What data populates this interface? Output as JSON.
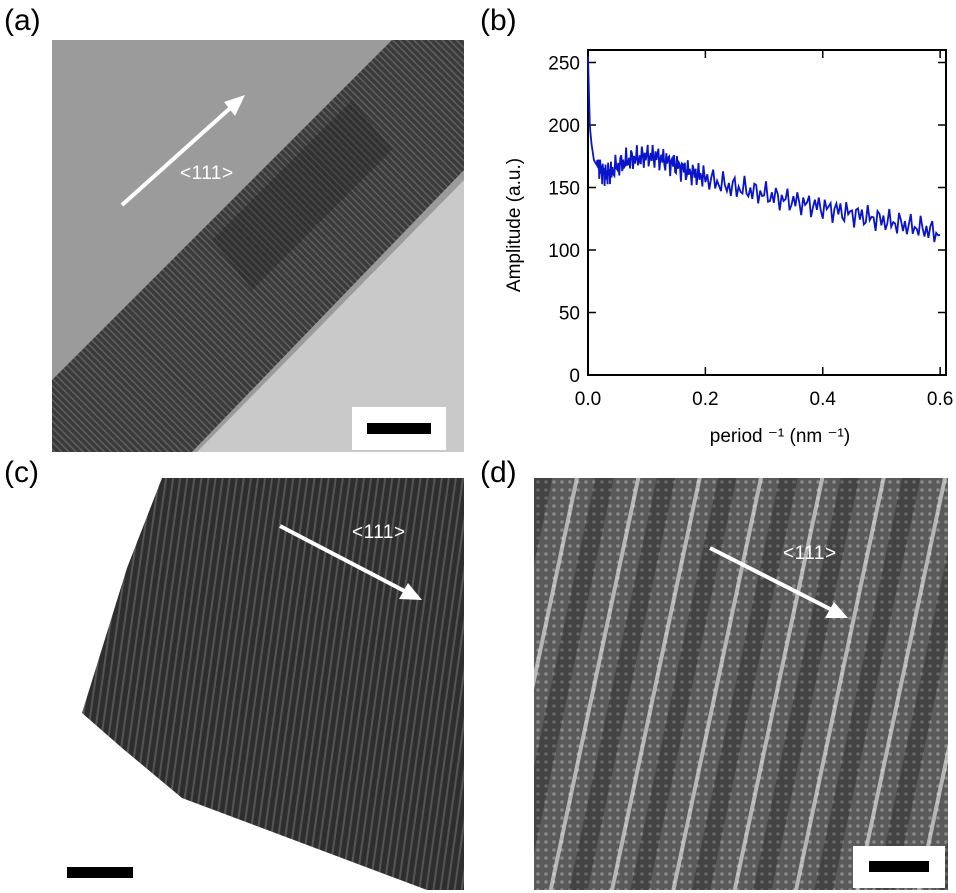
{
  "figure": {
    "panels": [
      {
        "label": "(a)",
        "direction_label": "<111>",
        "content": "TEM image of nanowire"
      },
      {
        "label": "(b)"
      },
      {
        "label": "(c)",
        "direction_label": "<111>",
        "content": "TEM image of nanowire tip"
      },
      {
        "label": "(d)",
        "direction_label": "<111>",
        "content": "high-resolution TEM lattice image"
      }
    ]
  },
  "chart_data": {
    "type": "line",
    "xlabel": "period ⁻¹ (nm ⁻¹)",
    "ylabel": "Amplitude (a.u.)",
    "xlim": [
      0.0,
      0.61
    ],
    "ylim": [
      0,
      260
    ],
    "xticks": [
      "0.0",
      "0.2",
      "0.4",
      "0.6"
    ],
    "xtick_values": [
      0.0,
      0.2,
      0.4,
      0.6
    ],
    "yticks": [
      "0",
      "50",
      "100",
      "150",
      "200",
      "250"
    ],
    "ytick_values": [
      0,
      50,
      100,
      150,
      200,
      250
    ],
    "grid": false,
    "line_color": "#0a14c8",
    "series": [
      {
        "x": [
          0.0,
          0.003,
          0.006,
          0.01,
          0.015,
          0.02,
          0.025,
          0.03,
          0.035,
          0.04,
          0.05,
          0.06,
          0.07,
          0.08,
          0.09,
          0.1,
          0.11,
          0.12,
          0.13,
          0.14,
          0.15,
          0.16,
          0.17,
          0.18,
          0.19,
          0.2,
          0.22,
          0.24,
          0.26,
          0.28,
          0.3,
          0.32,
          0.34,
          0.36,
          0.38,
          0.4,
          0.42,
          0.44,
          0.46,
          0.48,
          0.5,
          0.52,
          0.54,
          0.56,
          0.58,
          0.6
        ],
        "values": [
          255,
          200,
          185,
          172,
          168,
          165,
          162,
          160,
          161,
          163,
          167,
          170,
          172,
          173,
          174,
          175,
          175,
          174,
          172,
          170,
          168,
          165,
          163,
          161,
          160,
          158,
          154,
          151,
          149,
          147,
          145,
          142,
          140,
          138,
          136,
          134,
          132,
          130,
          128,
          126,
          124,
          122,
          120,
          118,
          116,
          112
        ]
      }
    ]
  }
}
